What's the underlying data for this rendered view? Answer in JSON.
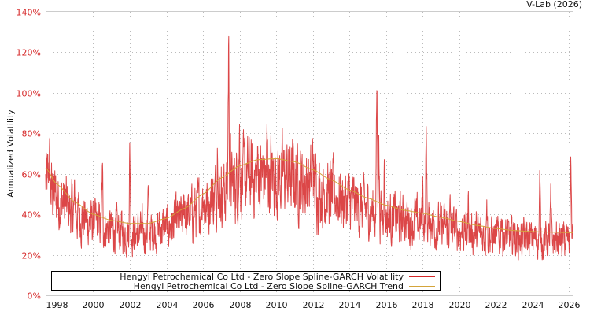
{
  "header": {
    "credit": "V-Lab (2026)"
  },
  "colors": {
    "volatility": "#d62728",
    "trend": "#d4a43a",
    "grid": "#bbbbbb",
    "axis": "#cccccc",
    "ytick_text": "#d62728"
  },
  "legend": {
    "items": [
      {
        "label": "Hengyi Petrochemical Co Ltd - Zero Slope Spline-GARCH Volatility",
        "color": "#d62728"
      },
      {
        "label": "Hengyi Petrochemical Co Ltd - Zero Slope Spline-GARCH Trend",
        "color": "#d4a43a"
      }
    ]
  },
  "chart_data": {
    "type": "line",
    "title": "",
    "xlabel": "",
    "ylabel": "Annualized Volatility",
    "x_ticks": [
      "1998",
      "2000",
      "2002",
      "2004",
      "2006",
      "2008",
      "2010",
      "2012",
      "2014",
      "2016",
      "2018",
      "2020",
      "2022",
      "2024",
      "2026"
    ],
    "y_ticks": [
      "0%",
      "20%",
      "40%",
      "60%",
      "80%",
      "100%",
      "120%",
      "140%"
    ],
    "xlim": [
      1997.4,
      2026.2
    ],
    "ylim": [
      0,
      140
    ],
    "grid": true,
    "legend_position": "lower-left inside",
    "series": [
      {
        "name": "Hengyi Petrochemical Co Ltd - Zero Slope Spline-GARCH Volatility",
        "color": "#d62728",
        "x": [
          1997.4,
          1997.6,
          1998.0,
          1998.5,
          1999.0,
          1999.5,
          2000.0,
          2000.5,
          2001.0,
          2001.5,
          2002.0,
          2002.5,
          2003.0,
          2003.5,
          2004.0,
          2004.5,
          2005.0,
          2005.5,
          2006.0,
          2006.5,
          2006.8,
          2007.0,
          2007.4,
          2007.5,
          2008.0,
          2008.5,
          2009.0,
          2009.5,
          2010.0,
          2010.5,
          2011.0,
          2011.5,
          2012.0,
          2012.3,
          2012.5,
          2013.0,
          2013.5,
          2014.0,
          2014.5,
          2015.0,
          2015.5,
          2015.6,
          2015.9,
          2016.5,
          2017.0,
          2017.5,
          2018.0,
          2018.2,
          2018.5,
          2019.0,
          2019.5,
          2020.0,
          2020.5,
          2021.0,
          2021.5,
          2021.9,
          2022.3,
          2022.5,
          2023.0,
          2023.5,
          2024.0,
          2024.4,
          2024.5,
          2025.0,
          2025.5,
          2025.9,
          2026.1
        ],
        "values": [
          45,
          78,
          48,
          38,
          55,
          40,
          30,
          65,
          35,
          28,
          78,
          25,
          55,
          28,
          35,
          40,
          52,
          48,
          62,
          40,
          90,
          60,
          135,
          70,
          90,
          70,
          72,
          80,
          55,
          65,
          50,
          45,
          80,
          45,
          50,
          42,
          55,
          40,
          50,
          45,
          112,
          85,
          70,
          35,
          45,
          40,
          60,
          85,
          45,
          30,
          45,
          28,
          50,
          35,
          58,
          22,
          45,
          25,
          38,
          35,
          25,
          62,
          30,
          50,
          20,
          25,
          72
        ]
      },
      {
        "name": "Hengyi Petrochemical Co Ltd - Zero Slope Spline-GARCH Trend",
        "color": "#d4a43a",
        "x": [
          1997.4,
          1998,
          1999,
          2000,
          2001,
          2002,
          2003,
          2004,
          2005,
          2006,
          2007,
          2008,
          2009,
          2010,
          2011,
          2012,
          2013,
          2014,
          2015,
          2016,
          2017,
          2018,
          2019,
          2020,
          2021,
          2022,
          2023,
          2024,
          2025,
          2026.2
        ],
        "values": [
          63,
          55,
          46,
          40,
          37,
          35.5,
          35.5,
          38,
          43,
          50,
          58,
          64,
          67,
          67.5,
          66,
          62,
          57,
          52,
          48,
          44.5,
          42,
          40.5,
          38.5,
          36.5,
          34.5,
          33,
          32,
          31.5,
          31.2,
          31
        ]
      }
    ]
  }
}
